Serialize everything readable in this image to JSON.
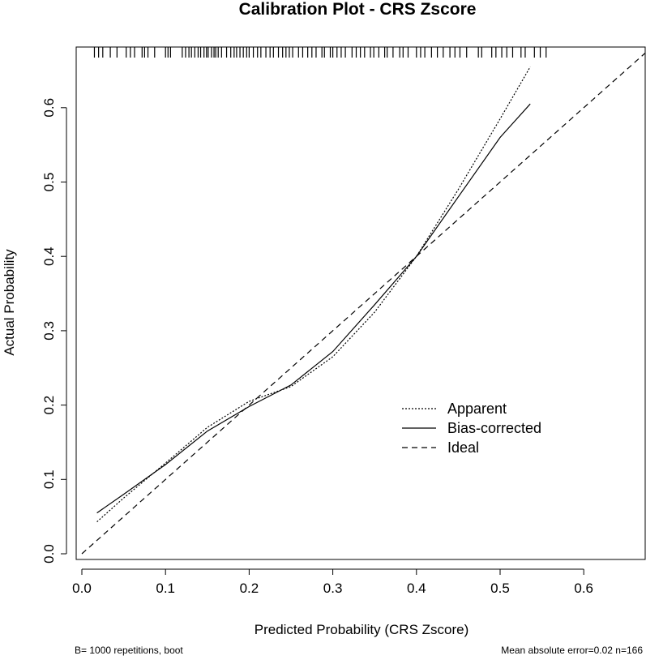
{
  "chart_data": {
    "type": "line",
    "title": "Calibration Plot - CRS Zscore",
    "xlabel": "Predicted Probability (CRS Zscore)",
    "ylabel": "Actual Probability",
    "xlim": [
      0,
      0.68
    ],
    "ylim": [
      0,
      0.68
    ],
    "x_ticks": [
      "0.0",
      "0.1",
      "0.2",
      "0.3",
      "0.4",
      "0.5",
      "0.6"
    ],
    "y_ticks": [
      "0.0",
      "0.1",
      "0.2",
      "0.3",
      "0.4",
      "0.5",
      "0.6"
    ],
    "grid": false,
    "legend_position": "bottom-right",
    "series": [
      {
        "name": "Apparent",
        "style": "dotted",
        "x": [
          0.018,
          0.05,
          0.1,
          0.15,
          0.2,
          0.25,
          0.3,
          0.35,
          0.4,
          0.45,
          0.5,
          0.536
        ],
        "y": [
          0.043,
          0.075,
          0.122,
          0.17,
          0.205,
          0.225,
          0.265,
          0.325,
          0.4,
          0.49,
          0.585,
          0.655
        ]
      },
      {
        "name": "Bias-corrected",
        "style": "solid",
        "x": [
          0.018,
          0.05,
          0.1,
          0.15,
          0.2,
          0.25,
          0.3,
          0.35,
          0.4,
          0.45,
          0.5,
          0.536
        ],
        "y": [
          0.055,
          0.08,
          0.12,
          0.165,
          0.198,
          0.227,
          0.272,
          0.335,
          0.4,
          0.48,
          0.56,
          0.605
        ]
      },
      {
        "name": "Ideal",
        "style": "dashed",
        "x": [
          0,
          0.68
        ],
        "y": [
          0,
          0.68
        ]
      }
    ],
    "rug_x": [
      0.015,
      0.02,
      0.025,
      0.034,
      0.042,
      0.053,
      0.058,
      0.063,
      0.072,
      0.075,
      0.079,
      0.087,
      0.1,
      0.103,
      0.106,
      0.12,
      0.124,
      0.128,
      0.131,
      0.135,
      0.139,
      0.142,
      0.146,
      0.149,
      0.151,
      0.155,
      0.158,
      0.16,
      0.163,
      0.167,
      0.173,
      0.178,
      0.182,
      0.185,
      0.189,
      0.193,
      0.197,
      0.2,
      0.205,
      0.21,
      0.214,
      0.22,
      0.225,
      0.229,
      0.235,
      0.24,
      0.244,
      0.248,
      0.252,
      0.259,
      0.264,
      0.27,
      0.275,
      0.28,
      0.287,
      0.29,
      0.297,
      0.3,
      0.305,
      0.31,
      0.315,
      0.323,
      0.328,
      0.333,
      0.338,
      0.345,
      0.349,
      0.355,
      0.362,
      0.365,
      0.372,
      0.38,
      0.384,
      0.39,
      0.4,
      0.405,
      0.41,
      0.418,
      0.425,
      0.432,
      0.44,
      0.446,
      0.452,
      0.46,
      0.474,
      0.478,
      0.49,
      0.495,
      0.502,
      0.508,
      0.515,
      0.525,
      0.53,
      0.541,
      0.548,
      0.555
    ],
    "footer_left": "B= 1000 repetitions, boot",
    "footer_right": "Mean absolute error=0.02 n=166"
  }
}
